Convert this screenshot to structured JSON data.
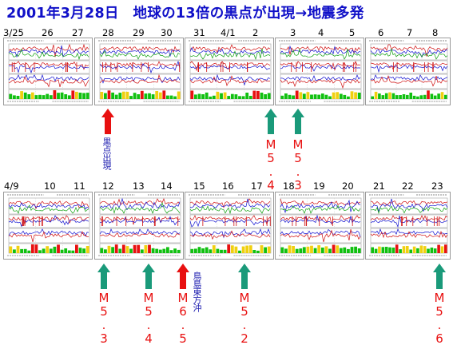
{
  "title": "2001年3月28日　地球の13倍の黒点が出現→地震多発",
  "row1": {
    "dates": [
      "3/25",
      "26",
      "27",
      "28",
      "29",
      "30",
      "31",
      "4/1",
      "2",
      "3",
      "4",
      "5",
      "6",
      "7",
      "8"
    ]
  },
  "row2": {
    "dates": [
      "4/9",
      "10",
      "11",
      "12",
      "13",
      "14",
      "15",
      "16",
      "17",
      "18",
      "19",
      "20",
      "21",
      "22",
      "23"
    ]
  },
  "annotations": {
    "sunspot_label": "黒点出現",
    "quakes_row1": [
      "M5.4",
      "M5.3"
    ],
    "quakes_row2": [
      "M5.3",
      "M5.4",
      "M6.5",
      "M5.2",
      "M5.6"
    ],
    "region_label": "鳥島東方沖"
  },
  "colors": {
    "title": "#1010c8",
    "arrow_green": "#1a9a7a",
    "arrow_red": "#e81010",
    "quake_text": "#e81010",
    "label_text": "#2020b0"
  }
}
